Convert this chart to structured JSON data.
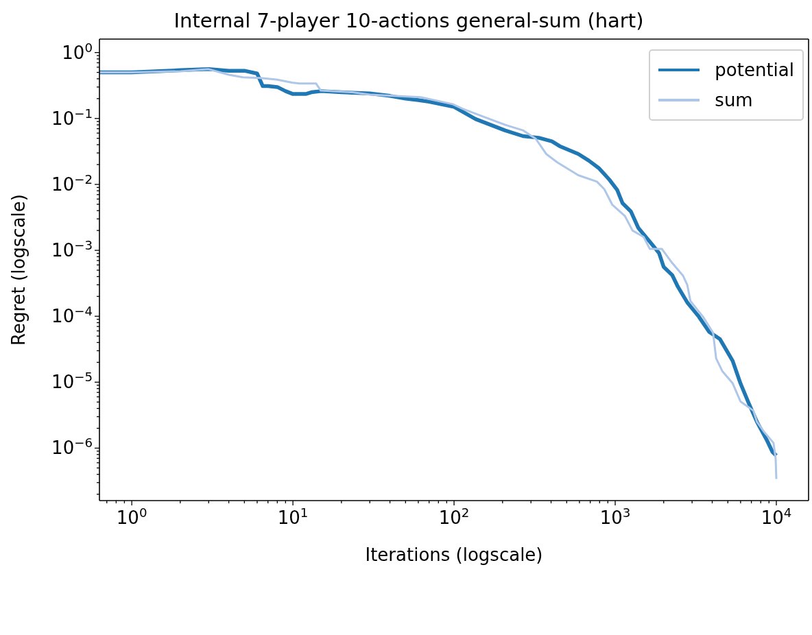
{
  "chart_data": {
    "type": "line",
    "title": "Internal 7-player 10-actions general-sum (hart)",
    "xlabel": "Iterations (logscale)",
    "ylabel": "Regret (logscale)",
    "log": "xy",
    "legend": "top right",
    "grid": false,
    "marker": "none",
    "line_style": "solid",
    "xlim": [
      0.63,
      15849
    ],
    "ylim": [
      1.6e-07,
      1.6
    ],
    "xticks": [
      {
        "value": 1,
        "label": "10$^{0}$"
      },
      {
        "value": 10,
        "label": "10$^{1}$"
      },
      {
        "value": 100,
        "label": "10$^{2}$"
      },
      {
        "value": 1000,
        "label": "10$^{3}$"
      },
      {
        "value": 10000,
        "label": "10$^{4}$"
      },
      {
        "value": 0.7,
        "label": null
      },
      {
        "value": 0.8,
        "label": null
      },
      {
        "value": 0.9,
        "label": null
      },
      {
        "value": 2,
        "label": null
      },
      {
        "value": 3,
        "label": null
      },
      {
        "value": 4,
        "label": null
      },
      {
        "value": 5,
        "label": null
      },
      {
        "value": 6,
        "label": null
      },
      {
        "value": 7,
        "label": null
      },
      {
        "value": 8,
        "label": null
      },
      {
        "value": 9,
        "label": null
      },
      {
        "value": 20,
        "label": null
      },
      {
        "value": 30,
        "label": null
      },
      {
        "value": 40,
        "label": null
      },
      {
        "value": 50,
        "label": null
      },
      {
        "value": 60,
        "label": null
      },
      {
        "value": 70,
        "label": null
      },
      {
        "value": 80,
        "label": null
      },
      {
        "value": 90,
        "label": null
      },
      {
        "value": 200,
        "label": null
      },
      {
        "value": 300,
        "label": null
      },
      {
        "value": 400,
        "label": null
      },
      {
        "value": 500,
        "label": null
      },
      {
        "value": 600,
        "label": null
      },
      {
        "value": 700,
        "label": null
      },
      {
        "value": 800,
        "label": null
      },
      {
        "value": 900,
        "label": null
      },
      {
        "value": 2000,
        "label": null
      },
      {
        "value": 3000,
        "label": null
      },
      {
        "value": 4000,
        "label": null
      },
      {
        "value": 5000,
        "label": null
      },
      {
        "value": 6000,
        "label": null
      },
      {
        "value": 7000,
        "label": null
      },
      {
        "value": 8000,
        "label": null
      },
      {
        "value": 9000,
        "label": null
      }
    ],
    "yticks": [
      {
        "value": 1e-06,
        "label": "10$^{−6}$"
      },
      {
        "value": 1e-05,
        "label": "10$^{−5}$"
      },
      {
        "value": 0.0001,
        "label": "10$^{−4}$"
      },
      {
        "value": 0.001,
        "label": "10$^{−3}$"
      },
      {
        "value": 0.01,
        "label": "10$^{−2}$"
      },
      {
        "value": 0.1,
        "label": "10$^{−1}$"
      },
      {
        "value": 1,
        "label": "10$^{0}$"
      },
      {
        "value": 2e-07,
        "label": null
      },
      {
        "value": 3e-07,
        "label": null
      },
      {
        "value": 4e-07,
        "label": null
      },
      {
        "value": 5e-07,
        "label": null
      },
      {
        "value": 6e-07,
        "label": null
      },
      {
        "value": 7e-07,
        "label": null
      },
      {
        "value": 8e-07,
        "label": null
      },
      {
        "value": 9e-07,
        "label": null
      },
      {
        "value": 2e-06,
        "label": null
      },
      {
        "value": 3e-06,
        "label": null
      },
      {
        "value": 4e-06,
        "label": null
      },
      {
        "value": 5e-06,
        "label": null
      },
      {
        "value": 6e-06,
        "label": null
      },
      {
        "value": 7e-06,
        "label": null
      },
      {
        "value": 8e-06,
        "label": null
      },
      {
        "value": 9e-06,
        "label": null
      },
      {
        "value": 2e-05,
        "label": null
      },
      {
        "value": 3e-05,
        "label": null
      },
      {
        "value": 4e-05,
        "label": null
      },
      {
        "value": 5e-05,
        "label": null
      },
      {
        "value": 6e-05,
        "label": null
      },
      {
        "value": 7e-05,
        "label": null
      },
      {
        "value": 8e-05,
        "label": null
      },
      {
        "value": 9e-05,
        "label": null
      },
      {
        "value": 0.0002,
        "label": null
      },
      {
        "value": 0.0003,
        "label": null
      },
      {
        "value": 0.0004,
        "label": null
      },
      {
        "value": 0.0005,
        "label": null
      },
      {
        "value": 0.0006,
        "label": null
      },
      {
        "value": 0.0007,
        "label": null
      },
      {
        "value": 0.0008,
        "label": null
      },
      {
        "value": 0.0009,
        "label": null
      },
      {
        "value": 0.002,
        "label": null
      },
      {
        "value": 0.003,
        "label": null
      },
      {
        "value": 0.004,
        "label": null
      },
      {
        "value": 0.005,
        "label": null
      },
      {
        "value": 0.006,
        "label": null
      },
      {
        "value": 0.007,
        "label": null
      },
      {
        "value": 0.008,
        "label": null
      },
      {
        "value": 0.009,
        "label": null
      },
      {
        "value": 0.02,
        "label": null
      },
      {
        "value": 0.03,
        "label": null
      },
      {
        "value": 0.04,
        "label": null
      },
      {
        "value": 0.05,
        "label": null
      },
      {
        "value": 0.06,
        "label": null
      },
      {
        "value": 0.07,
        "label": null
      },
      {
        "value": 0.08,
        "label": null
      },
      {
        "value": 0.09,
        "label": null
      },
      {
        "value": 0.2,
        "label": null
      },
      {
        "value": 0.3,
        "label": null
      },
      {
        "value": 0.4,
        "label": null
      },
      {
        "value": 0.5,
        "label": null
      },
      {
        "value": 0.6,
        "label": null
      },
      {
        "value": 0.7,
        "label": null
      },
      {
        "value": 0.8,
        "label": null
      },
      {
        "value": 0.9,
        "label": null
      }
    ],
    "series": [
      {
        "name": "potential",
        "color": "#1f77b4",
        "x": [
          0.63,
          1,
          2,
          3,
          4,
          5,
          6,
          6.5,
          7,
          8,
          9,
          10,
          12,
          13,
          15,
          20,
          30,
          40,
          50,
          60,
          70,
          100,
          136,
          207,
          268,
          335,
          405,
          453,
          590,
          685,
          795,
          920,
          1030,
          1110,
          1250,
          1390,
          1660,
          1870,
          2000,
          2260,
          2450,
          2810,
          3300,
          3830,
          4470,
          5360,
          5990,
          6740,
          7580,
          8760,
          9470,
          10000
        ],
        "values": [
          0.5,
          0.5,
          0.54,
          0.56,
          0.53,
          0.53,
          0.48,
          0.31,
          0.31,
          0.3,
          0.26,
          0.235,
          0.235,
          0.25,
          0.26,
          0.25,
          0.24,
          0.22,
          0.2,
          0.19,
          0.18,
          0.15,
          0.098,
          0.066,
          0.054,
          0.051,
          0.045,
          0.038,
          0.029,
          0.023,
          0.0175,
          0.0118,
          0.0082,
          0.0052,
          0.0039,
          0.0022,
          0.0013,
          0.00091,
          0.00056,
          0.00042,
          0.00028,
          0.00016,
          9.9e-05,
          5.8e-05,
          4.5e-05,
          2.1e-05,
          9.6e-06,
          4.8e-06,
          2.5e-06,
          1.3e-06,
          8.7e-07,
          7.7e-07
        ]
      },
      {
        "name": "sum",
        "color": "#aec7e8",
        "x": [
          0.63,
          1,
          2,
          3,
          4,
          4.9,
          6.3,
          7.9,
          9.9,
          11,
          13.9,
          14.9,
          23.3,
          30,
          51,
          62,
          98,
          113,
          153,
          208,
          268,
          322,
          373,
          437,
          590,
          770,
          855,
          960,
          1150,
          1280,
          1500,
          1640,
          1950,
          2250,
          2640,
          2800,
          2930,
          3500,
          4050,
          4230,
          4630,
          5360,
          5990,
          7210,
          7580,
          8340,
          9600,
          9900,
          10000
        ],
        "values": [
          0.5,
          0.5,
          0.52,
          0.56,
          0.46,
          0.42,
          0.41,
          0.39,
          0.35,
          0.34,
          0.34,
          0.265,
          0.25,
          0.23,
          0.215,
          0.21,
          0.165,
          0.14,
          0.106,
          0.08,
          0.066,
          0.049,
          0.029,
          0.0216,
          0.0138,
          0.011,
          0.0085,
          0.0049,
          0.0033,
          0.002,
          0.0016,
          0.00105,
          0.00105,
          0.00065,
          0.00041,
          0.0003,
          0.00017,
          9.9e-05,
          5.6e-05,
          2.3e-05,
          1.46e-05,
          9.6e-06,
          5.1e-06,
          3.7e-06,
          2.5e-06,
          1.8e-06,
          1.2e-06,
          7e-07,
          3.4e-07
        ]
      }
    ]
  }
}
